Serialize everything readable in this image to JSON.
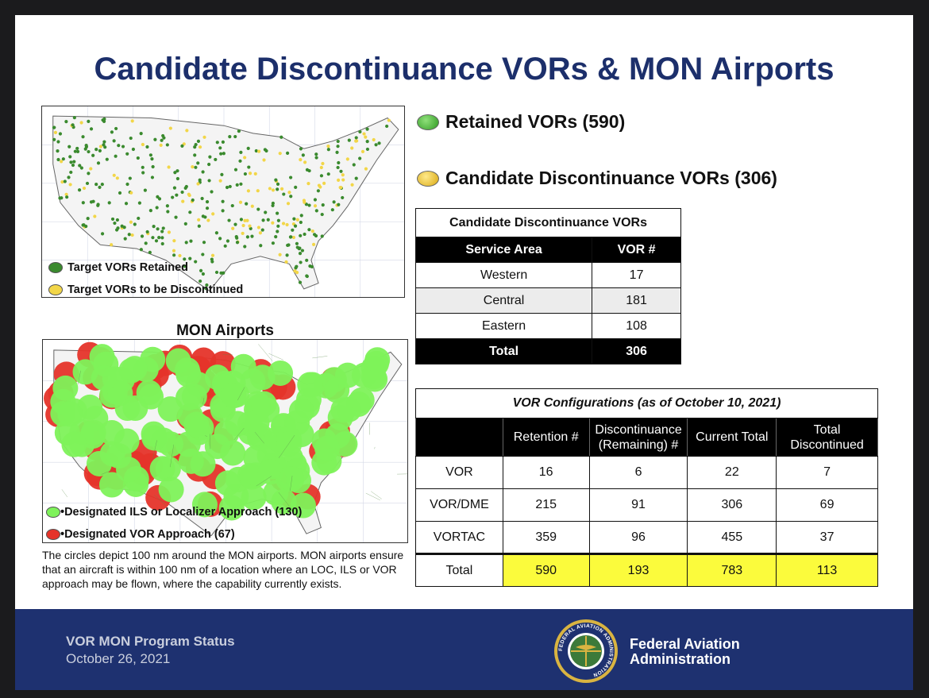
{
  "title": "Candidate Discontinuance VORs & MON Airports",
  "map_top": {
    "legend": [
      {
        "label": "Target VORs Retained",
        "color": "#3a8a2e"
      },
      {
        "label": "Target VORs to be Discontinued",
        "color": "#f2d648"
      }
    ]
  },
  "map_mon": {
    "title": "MON Airports",
    "legend": [
      {
        "label": "•Designated ILS or Localizer Approach (130)",
        "color": "#7ef25a"
      },
      {
        "label": "•Designated VOR Approach (67)",
        "color": "#e5342a"
      }
    ]
  },
  "caption": "The circles depict 100 nm around the MON airports. MON airports ensure that an aircraft is within 100 nm of a location where an LOC, ILS or VOR approach may be flown, where the capability currently exists.",
  "keys": [
    {
      "label": "Retained VORs (590)",
      "color": "#3fae2e"
    },
    {
      "label": "Candidate Discontinuance VORs (306)",
      "color": "#e8c22a"
    }
  ],
  "table_candidate": {
    "caption": "Candidate Discontinuance VORs",
    "headers": [
      "Service Area",
      "VOR #"
    ],
    "rows": [
      [
        "Western",
        "17"
      ],
      [
        "Central",
        "181"
      ],
      [
        "Eastern",
        "108"
      ]
    ],
    "total": [
      "Total",
      "306"
    ]
  },
  "table_config": {
    "caption": "VOR Configurations (as of October 10, 2021)",
    "headers": [
      "",
      "Retention #",
      "Discontinuance (Remaining) #",
      "Current Total",
      "Total Discontinued"
    ],
    "rows": [
      [
        "VOR",
        "16",
        "6",
        "22",
        "7"
      ],
      [
        "VOR/DME",
        "215",
        "91",
        "306",
        "69"
      ],
      [
        "VORTAC",
        "359",
        "96",
        "455",
        "37"
      ]
    ],
    "total": [
      "Total",
      "590",
      "193",
      "783",
      "113"
    ],
    "highlight_color": "#fbfb3c"
  },
  "footer": {
    "program": "VOR MON Program Status",
    "date": "October 26, 2021",
    "seal_text": "FEDERAL AVIATION ADMINISTRATION",
    "org_line1": "Federal Aviation",
    "org_line2": "Administration"
  }
}
